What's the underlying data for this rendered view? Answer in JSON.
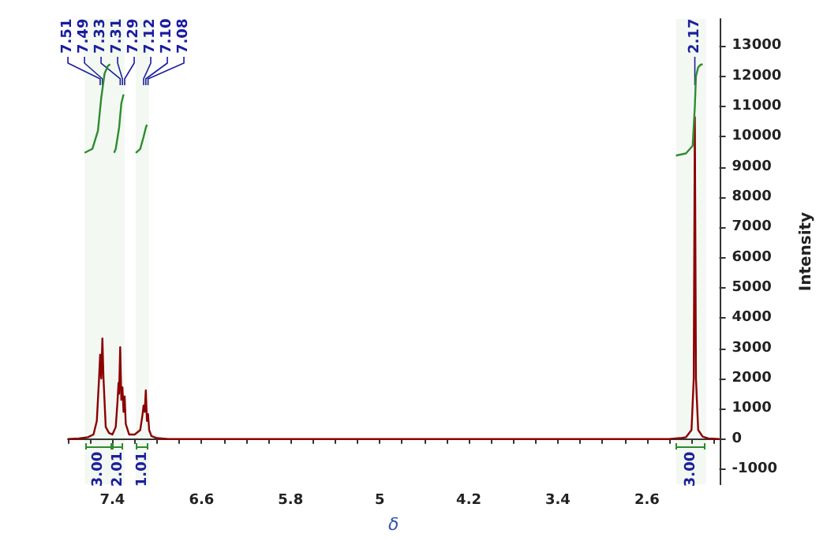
{
  "chart_data": {
    "type": "line",
    "xlabel": "δ",
    "ylabel": "Intensity",
    "xlim": [
      7.8,
      1.95
    ],
    "xticks": [
      7.4,
      6.6,
      5.8,
      5.0,
      4.2,
      3.4,
      2.6
    ],
    "ylim": [
      -1500,
      13900
    ],
    "yticks": [
      -1000,
      0,
      1000,
      2000,
      3000,
      4000,
      5000,
      6000,
      7000,
      8000,
      9000,
      10000,
      11000,
      12000,
      13000
    ],
    "marker": "none",
    "line_style": "solid",
    "series": [
      {
        "color": "#8b0000",
        "x": [
          7.8,
          7.7,
          7.62,
          7.57,
          7.54,
          7.52,
          7.51,
          7.5,
          7.49,
          7.48,
          7.46,
          7.43,
          7.4,
          7.37,
          7.355,
          7.345,
          7.34,
          7.33,
          7.32,
          7.31,
          7.3,
          7.29,
          7.28,
          7.25,
          7.2,
          7.15,
          7.13,
          7.12,
          7.11,
          7.1,
          7.09,
          7.08,
          7.07,
          7.05,
          7.0,
          6.9,
          2.4,
          2.3,
          2.25,
          2.2,
          2.18,
          2.17,
          2.16,
          2.14,
          2.1,
          2.05,
          1.95
        ],
        "values": [
          0,
          20,
          60,
          150,
          600,
          2000,
          2790,
          2000,
          3330,
          2000,
          400,
          200,
          150,
          400,
          1200,
          1860,
          1500,
          3040,
          1300,
          1710,
          900,
          1410,
          500,
          150,
          150,
          300,
          800,
          1110,
          900,
          1610,
          600,
          820,
          300,
          100,
          30,
          0,
          0,
          30,
          60,
          300,
          2000,
          10650,
          2000,
          300,
          80,
          20,
          0
        ]
      },
      {
        "color": "#2e8b2e",
        "x": [
          7.65,
          7.58,
          7.53,
          7.5,
          7.47,
          7.44,
          7.42
        ],
        "values": [
          9470,
          9600,
          10200,
          11300,
          12100,
          12350,
          12400
        ]
      },
      {
        "color": "#2f8c2f",
        "x": [
          7.385,
          7.37,
          7.34,
          7.32,
          7.3
        ],
        "values": [
          9470,
          9600,
          10300,
          11100,
          11400
        ]
      },
      {
        "color": "#2d8a2d",
        "x": [
          7.19,
          7.15,
          7.12,
          7.1,
          7.09
        ],
        "values": [
          9470,
          9600,
          10000,
          10300,
          10400
        ]
      },
      {
        "color": "#308d30",
        "x": [
          2.34,
          2.25,
          2.19,
          2.17,
          2.16,
          2.14,
          2.12,
          2.1
        ],
        "values": [
          9380,
          9450,
          9700,
          11000,
          12000,
          12300,
          12380,
          12400
        ]
      }
    ],
    "annotations": [
      {
        "text": "7.51",
        "x": 7.51
      },
      {
        "text": "7.49",
        "x": 7.49
      },
      {
        "text": "7.33",
        "x": 7.33
      },
      {
        "text": "7.31",
        "x": 7.31
      },
      {
        "text": "7.29",
        "x": 7.29
      },
      {
        "text": "7.12",
        "x": 7.12
      },
      {
        "text": "7.10",
        "x": 7.1
      },
      {
        "text": "7.08",
        "x": 7.08
      },
      {
        "text": "2.17",
        "x": 2.17
      }
    ],
    "bands": [
      {
        "axis": "x",
        "from": 7.65,
        "to": 7.4,
        "label": "3.00"
      },
      {
        "axis": "x",
        "from": 7.4,
        "to": 7.29,
        "label": "2.01"
      },
      {
        "axis": "x",
        "from": 7.19,
        "to": 7.07,
        "label": "1.01"
      },
      {
        "axis": "x",
        "from": 2.34,
        "to": 2.07,
        "label": "3.00"
      }
    ]
  }
}
